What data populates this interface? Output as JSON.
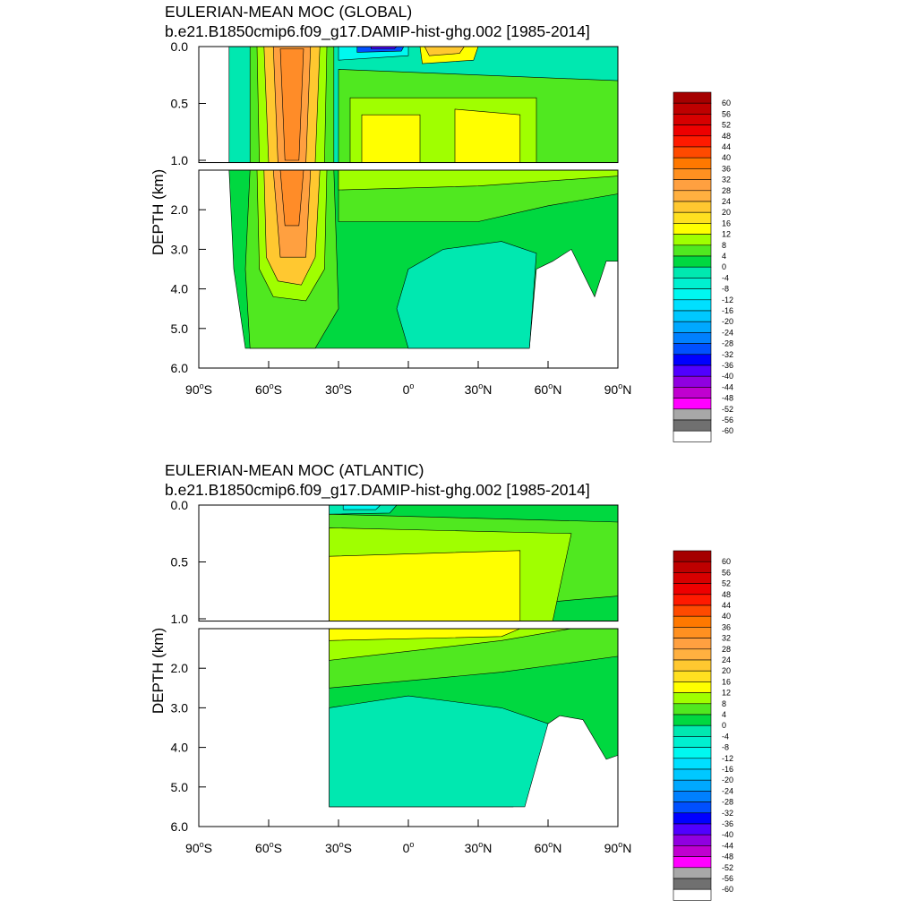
{
  "charts": [
    {
      "title": "EULERIAN-MEAN MOC (GLOBAL)",
      "subtitle": "b.e21.B1850cmip6.f09_g17.DAMIP-hist-ghg.002 [1985-2014]",
      "ylabel": "DEPTH (km)"
    },
    {
      "title": "EULERIAN-MEAN MOC (ATLANTIC)",
      "subtitle": "b.e21.B1850cmip6.f09_g17.DAMIP-hist-ghg.002 [1985-2014]",
      "ylabel": "DEPTH (km)"
    }
  ],
  "x_ticks": [
    {
      "deg": "90",
      "sup": "o",
      "hem": "S"
    },
    {
      "deg": "60",
      "sup": "o",
      "hem": "S"
    },
    {
      "deg": "30",
      "sup": "o",
      "hem": "S"
    },
    {
      "deg": "0",
      "sup": "o",
      "hem": ""
    },
    {
      "deg": "30",
      "sup": "o",
      "hem": "N"
    },
    {
      "deg": "60",
      "sup": "o",
      "hem": "N"
    },
    {
      "deg": "90",
      "sup": "o",
      "hem": "N"
    }
  ],
  "y_ticks_upper": [
    "0.0",
    "0.5",
    "1.0"
  ],
  "y_ticks_lower": [
    "2.0",
    "3.0",
    "4.0",
    "5.0",
    "6.0"
  ],
  "colorbar_labels": [
    "60",
    "56",
    "52",
    "48",
    "44",
    "40",
    "36",
    "32",
    "28",
    "24",
    "20",
    "16",
    "12",
    "8",
    "4",
    "0",
    "-4",
    "-8",
    "-12",
    "-16",
    "-20",
    "-24",
    "-28",
    "-32",
    "-36",
    "-40",
    "-44",
    "-48",
    "-52",
    "-56",
    "-60"
  ],
  "colorbar_colors": [
    "#a50000",
    "#be0000",
    "#d70000",
    "#ee0000",
    "#ff1a00",
    "#ff4a00",
    "#ff7800",
    "#ff9020",
    "#ffa040",
    "#ffb040",
    "#ffc830",
    "#ffe020",
    "#ffff00",
    "#a0ff00",
    "#50e820",
    "#00d840",
    "#00e8b0",
    "#00f0d0",
    "#00f8f0",
    "#00e0ff",
    "#00c8ff",
    "#00a8ff",
    "#0080ff",
    "#0050ff",
    "#0000ff",
    "#5000ff",
    "#9000e0",
    "#c000d0",
    "#ff00ff",
    "#a8a8a8",
    "#707070",
    "#ffffff"
  ],
  "chart_data": [
    {
      "type": "heatmap",
      "title": "EULERIAN-MEAN MOC (GLOBAL)",
      "subtitle": "b.e21.B1850cmip6.f09_g17.DAMIP-hist-ghg.002 [1985-2014]",
      "ylabel": "DEPTH (km)",
      "xlim": [
        -90,
        90
      ],
      "ylim": [
        0,
        6
      ],
      "contour_interval": 4,
      "features": [
        {
          "name": "",
          "lat": -50,
          "depth_km": [
            0.0,
            4.0
          ],
          "value": 36
        },
        {
          "name": "",
          "lat": -15,
          "depth_km": [
            0.0,
            0.1
          ],
          "value": -40
        },
        {
          "name": "",
          "lat": 15,
          "depth_km": [
            0.0,
            0.2
          ],
          "value": 24
        },
        {
          "name": "",
          "lat": 30,
          "depth_km": [
            0.6,
            1.2
          ],
          "value": 16
        },
        {
          "name": "",
          "lat": 15,
          "depth_km": [
            3.0,
            5.5
          ],
          "value": -4
        }
      ]
    },
    {
      "type": "heatmap",
      "title": "EULERIAN-MEAN MOC (ATLANTIC)",
      "subtitle": "b.e21.B1850cmip6.f09_g17.DAMIP-hist-ghg.002 [1985-2014]",
      "ylabel": "DEPTH (km)",
      "xlim": [
        -90,
        90
      ],
      "ylim": [
        0,
        6
      ],
      "contour_interval": 4,
      "features": [
        {
          "name": "",
          "lat": 15,
          "depth_km": [
            0.4,
            1.2
          ],
          "value": 16
        },
        {
          "name": "",
          "lat": 10,
          "depth_km": [
            3.0,
            5.5
          ],
          "value": -4
        }
      ]
    }
  ]
}
